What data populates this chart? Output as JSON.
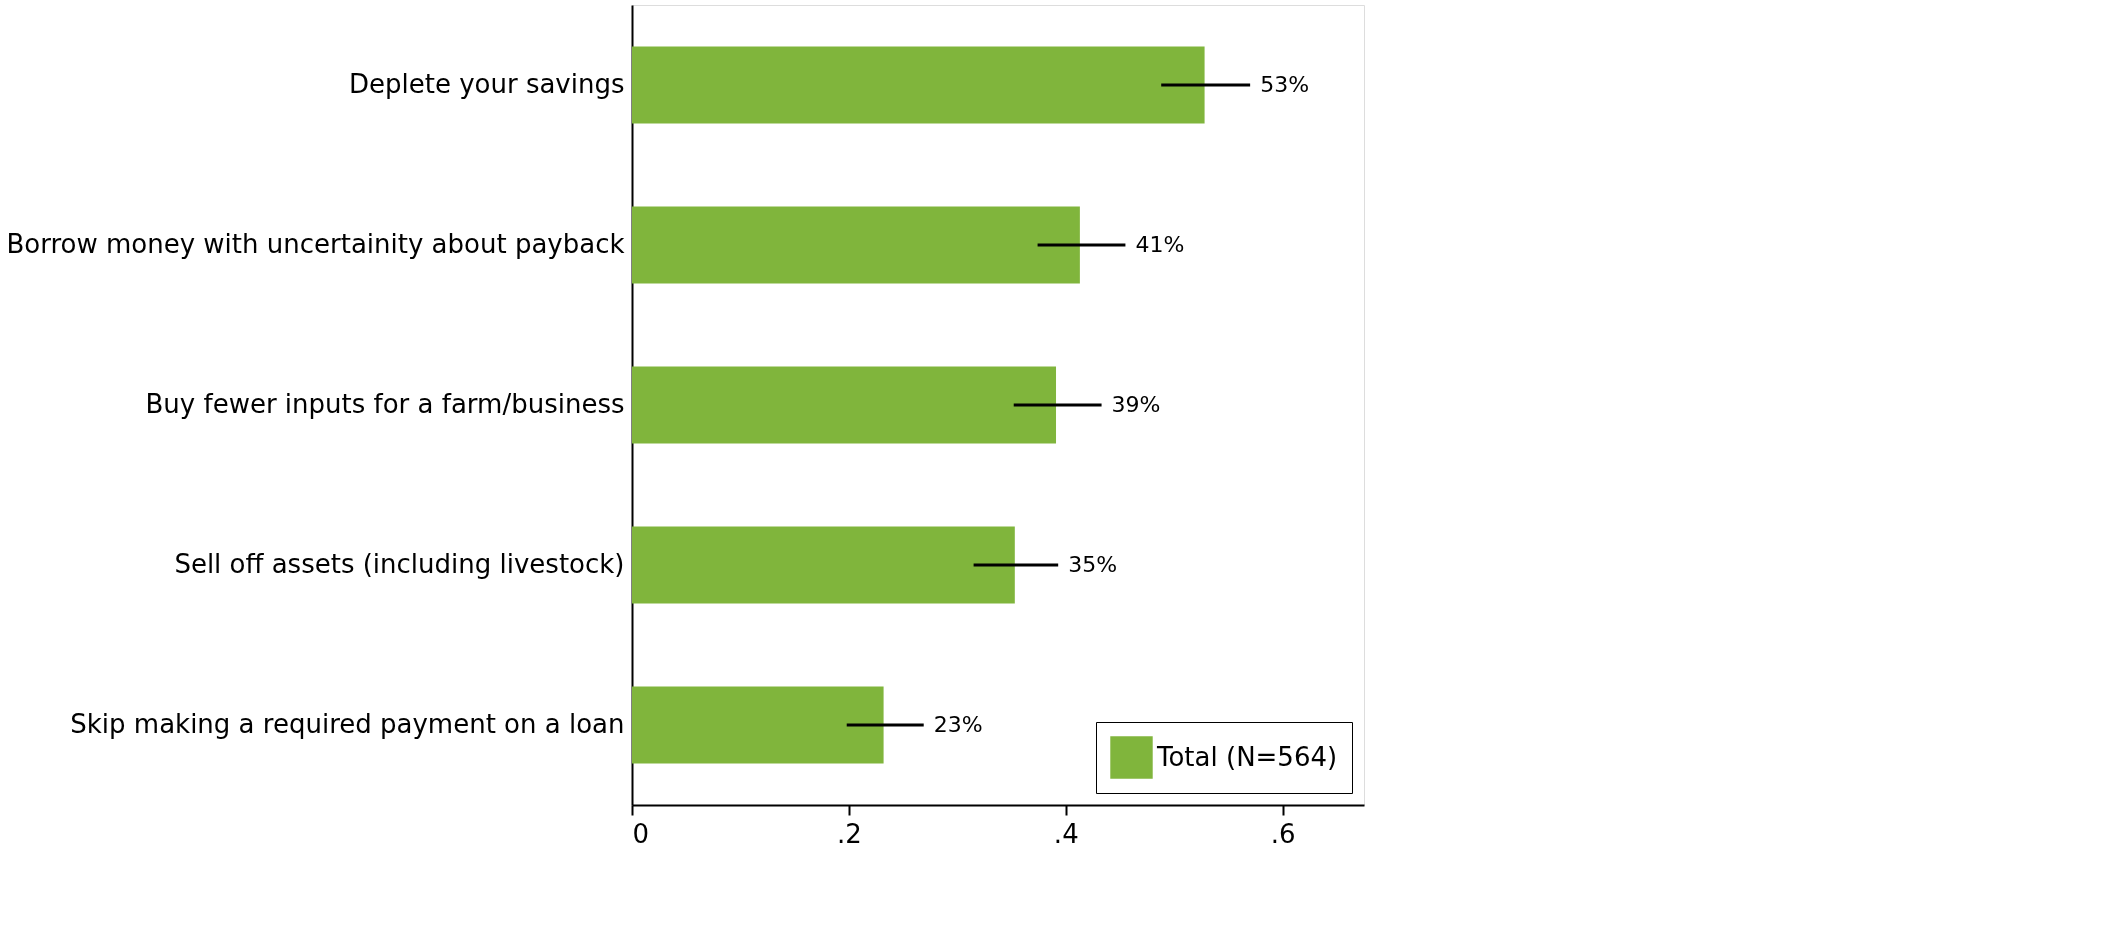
{
  "chart_data": {
    "type": "bar",
    "orientation": "horizontal",
    "categories": [
      "Deplete your savings",
      "Borrow money with uncertainity about payback",
      "Buy fewer inputs for a farm/business",
      "Sell off assets (including livestock)",
      "Skip making a required payment on a loan"
    ],
    "series": [
      {
        "name": "Total (N=564)",
        "color": "#80b53c",
        "values": [
          0.528,
          0.413,
          0.391,
          0.353,
          0.232
        ],
        "errors": [
          [
            0.488,
            0.57
          ],
          [
            0.374,
            0.455
          ],
          [
            0.352,
            0.433
          ],
          [
            0.315,
            0.393
          ],
          [
            0.198,
            0.269
          ]
        ],
        "value_labels": [
          "53%",
          "41%",
          "39%",
          "35%",
          "23%"
        ]
      }
    ],
    "xlim": [
      0,
      0.675
    ],
    "xticks": [
      0,
      {
        "value": 0.2,
        "label": ".2"
      },
      {
        "value": 0.4,
        "label": ".4"
      },
      {
        "value": 0.6,
        "label": ".6"
      }
    ],
    "grid": false,
    "legend": "bottom right"
  }
}
